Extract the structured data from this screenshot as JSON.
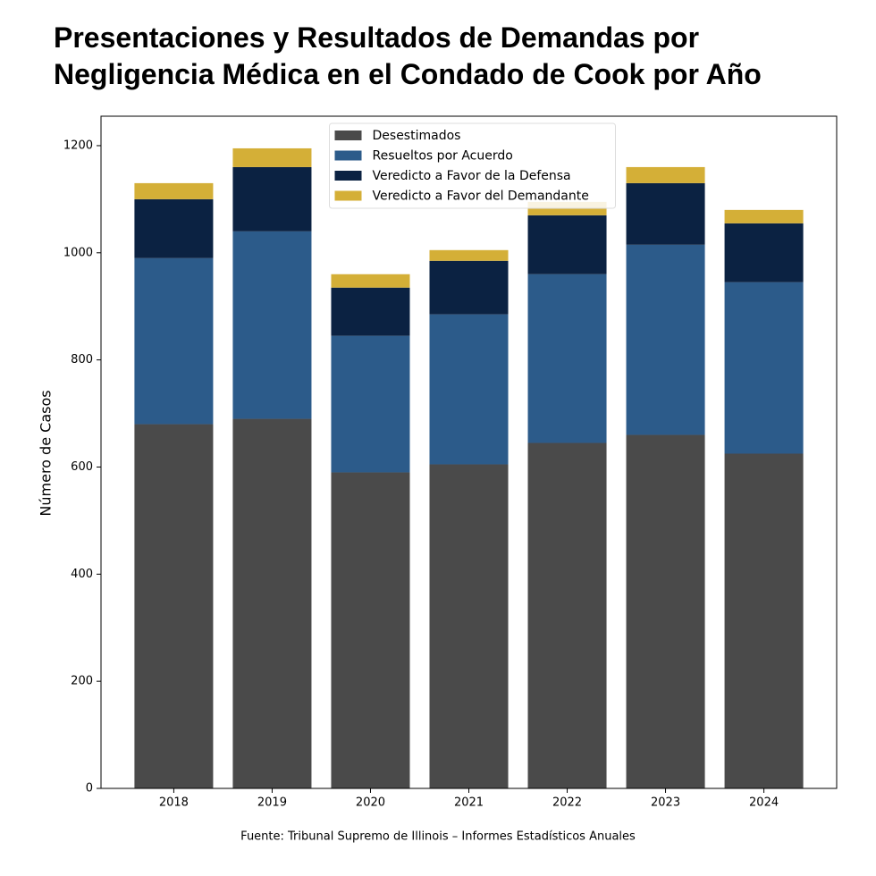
{
  "chart_data": {
    "type": "stacked-bar",
    "title": [
      "Presentaciones y Resultados de Demandas por",
      "Negligencia Médica en el Condado de Cook por Año"
    ],
    "y_label": "Número de Casos",
    "source": "Fuente: Tribunal Supremo de Illinois – Informes Estadísticos Anuales",
    "categories": [
      "2018",
      "2019",
      "2020",
      "2021",
      "2022",
      "2023",
      "2024"
    ],
    "series": [
      {
        "name": "Desestimados",
        "color": "#4a4a4a",
        "values": [
          680,
          690,
          590,
          605,
          645,
          660,
          625
        ]
      },
      {
        "name": "Resueltos por Acuerdo",
        "color": "#2c5b8a",
        "values": [
          310,
          350,
          255,
          280,
          315,
          355,
          320
        ]
      },
      {
        "name": "Veredicto a Favor de la Defensa",
        "color": "#0b2242",
        "values": [
          110,
          120,
          90,
          100,
          110,
          115,
          110
        ]
      },
      {
        "name": "Veredicto a Favor del Demandante",
        "color": "#d4af37",
        "values": [
          30,
          35,
          25,
          20,
          25,
          30,
          25
        ]
      }
    ],
    "ylim": [
      0,
      1255
    ],
    "yticks": [
      0,
      200,
      400,
      600,
      800,
      1000,
      1200
    ],
    "legend": "upper center"
  }
}
